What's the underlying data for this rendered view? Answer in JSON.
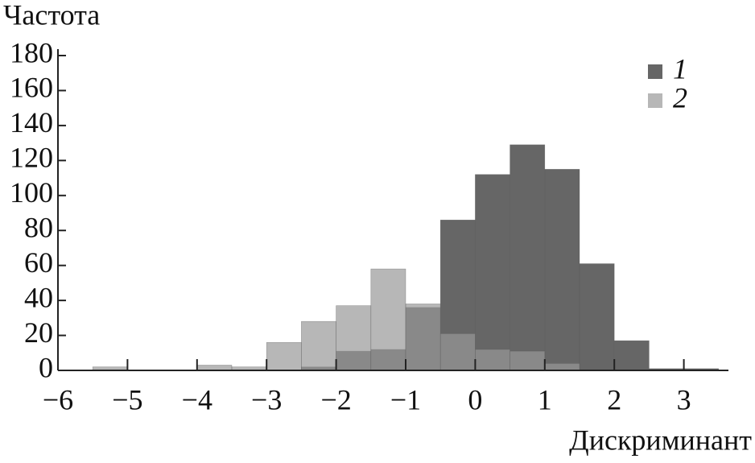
{
  "chart_data": {
    "type": "histogram",
    "y_label": "Частота",
    "x_label": "Дискриминант",
    "bins": [
      -5.5,
      -5,
      -4.5,
      -4,
      -3.5,
      -3,
      -2.5,
      -2,
      -1.5,
      -1,
      -0.5,
      0,
      0.5,
      1,
      1.5,
      2,
      2.5,
      3,
      3.5
    ],
    "series": [
      {
        "name": "1",
        "color": "#666666",
        "values": [
          0,
          0,
          0,
          0,
          0,
          0,
          2,
          11,
          12,
          36,
          86,
          112,
          129,
          115,
          61,
          17,
          1,
          1
        ]
      },
      {
        "name": "2",
        "color": "#999999",
        "values": [
          2,
          0,
          0,
          3,
          2,
          16,
          28,
          37,
          58,
          38,
          21,
          12,
          11,
          4,
          0,
          0,
          0,
          0
        ]
      }
    ],
    "xlim": [
      -6,
      4
    ],
    "xticks": [
      {
        "value": -6,
        "label": "−6"
      },
      {
        "value": -5,
        "label": "−5"
      },
      {
        "value": -4,
        "label": "−4"
      },
      {
        "value": -3,
        "label": "−3"
      },
      {
        "value": -2,
        "label": "−2"
      },
      {
        "value": -1,
        "label": "−1"
      },
      0,
      1,
      2,
      3
    ],
    "ylim": [
      0,
      180
    ],
    "yticks": [
      0,
      20,
      40,
      60,
      80,
      100,
      120,
      140,
      160,
      180
    ],
    "legend": "top-right",
    "grid": false
  }
}
